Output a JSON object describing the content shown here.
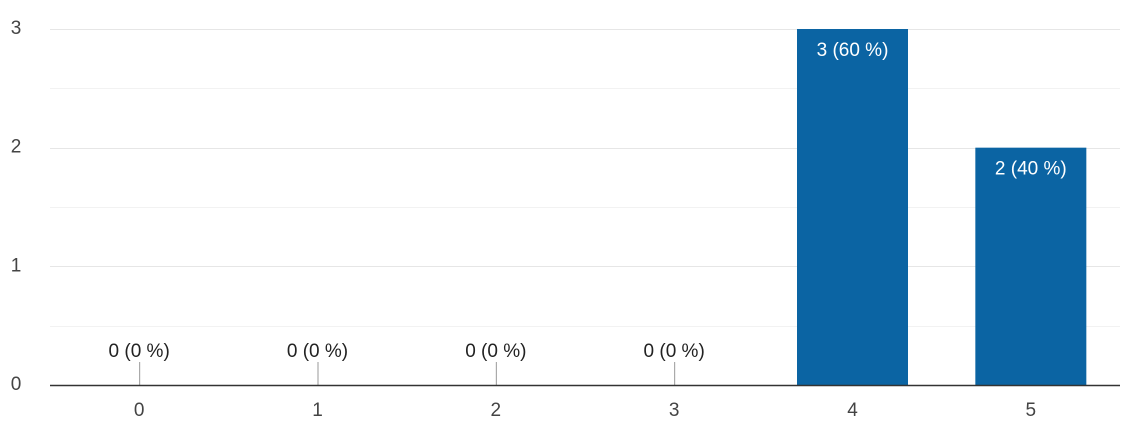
{
  "chart_data": {
    "type": "bar",
    "categories": [
      "0",
      "1",
      "2",
      "3",
      "4",
      "5"
    ],
    "values": [
      0,
      0,
      0,
      0,
      3,
      2
    ],
    "data_labels": [
      "0 (0 %)",
      "0 (0 %)",
      "0 (0 %)",
      "0 (0 %)",
      "3 (60 %)",
      "2 (40 %)"
    ],
    "ylim": [
      0,
      3
    ],
    "y_ticks": [
      "0",
      "1",
      "2",
      "3"
    ],
    "grid": true,
    "bar_color": "#0b64a3",
    "title": "",
    "xlabel": "",
    "ylabel": ""
  }
}
